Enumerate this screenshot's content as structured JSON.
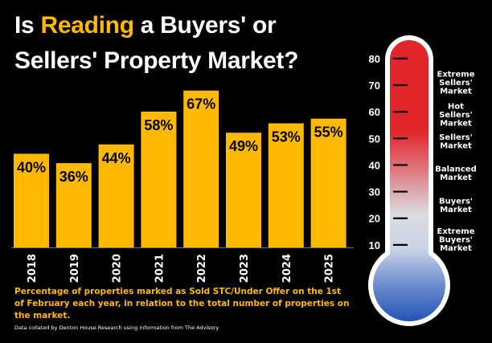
{
  "title": {
    "prefix": "Is ",
    "highlight": "Reading",
    "suffix": " a Buyers' or",
    "line2": "Sellers' Property Market?"
  },
  "caption": "Percentage of properties marked as Sold STC/Under Offer on the 1st of February each year, in relation to the total number of properties on the market.",
  "credit": "Data collated by Denton House Research using information from The Advisory",
  "colors": {
    "bar": "#FFB900",
    "accent": "#FFB900",
    "thermo_top": "#E1262B",
    "thermo_bottom": "#1E4FB5"
  },
  "chart_data": {
    "type": "bar",
    "categories": [
      "2018",
      "2019",
      "2020",
      "2021",
      "2022",
      "2023",
      "2024",
      "2025"
    ],
    "values": [
      40,
      36,
      44,
      58,
      67,
      49,
      53,
      55
    ],
    "value_labels": [
      "40%",
      "36%",
      "44%",
      "58%",
      "67%",
      "49%",
      "53%",
      "55%"
    ],
    "unit": "%",
    "ylim": [
      0,
      70
    ],
    "grid": false,
    "legend": "none"
  },
  "thermometer": {
    "ticks": [
      "80",
      "70",
      "60",
      "50",
      "40",
      "30",
      "20",
      "10"
    ],
    "tick_values": [
      80,
      70,
      60,
      50,
      40,
      30,
      20,
      10
    ],
    "scale_min": 0,
    "scale_max": 86,
    "zones": [
      {
        "lines": [
          "Extreme",
          "Sellers'",
          "Market"
        ],
        "at": 71
      },
      {
        "lines": [
          "Hot",
          "Sellers'",
          "Market"
        ],
        "at": 59
      },
      {
        "lines": [
          "Sellers'",
          "Market"
        ],
        "at": 49
      },
      {
        "lines": [
          "Balanced",
          "Market"
        ],
        "at": 37
      },
      {
        "lines": [
          "Buyers'",
          "Market"
        ],
        "at": 25
      },
      {
        "lines": [
          "Extreme",
          "Buyers'",
          "Market"
        ],
        "at": 12
      }
    ]
  }
}
